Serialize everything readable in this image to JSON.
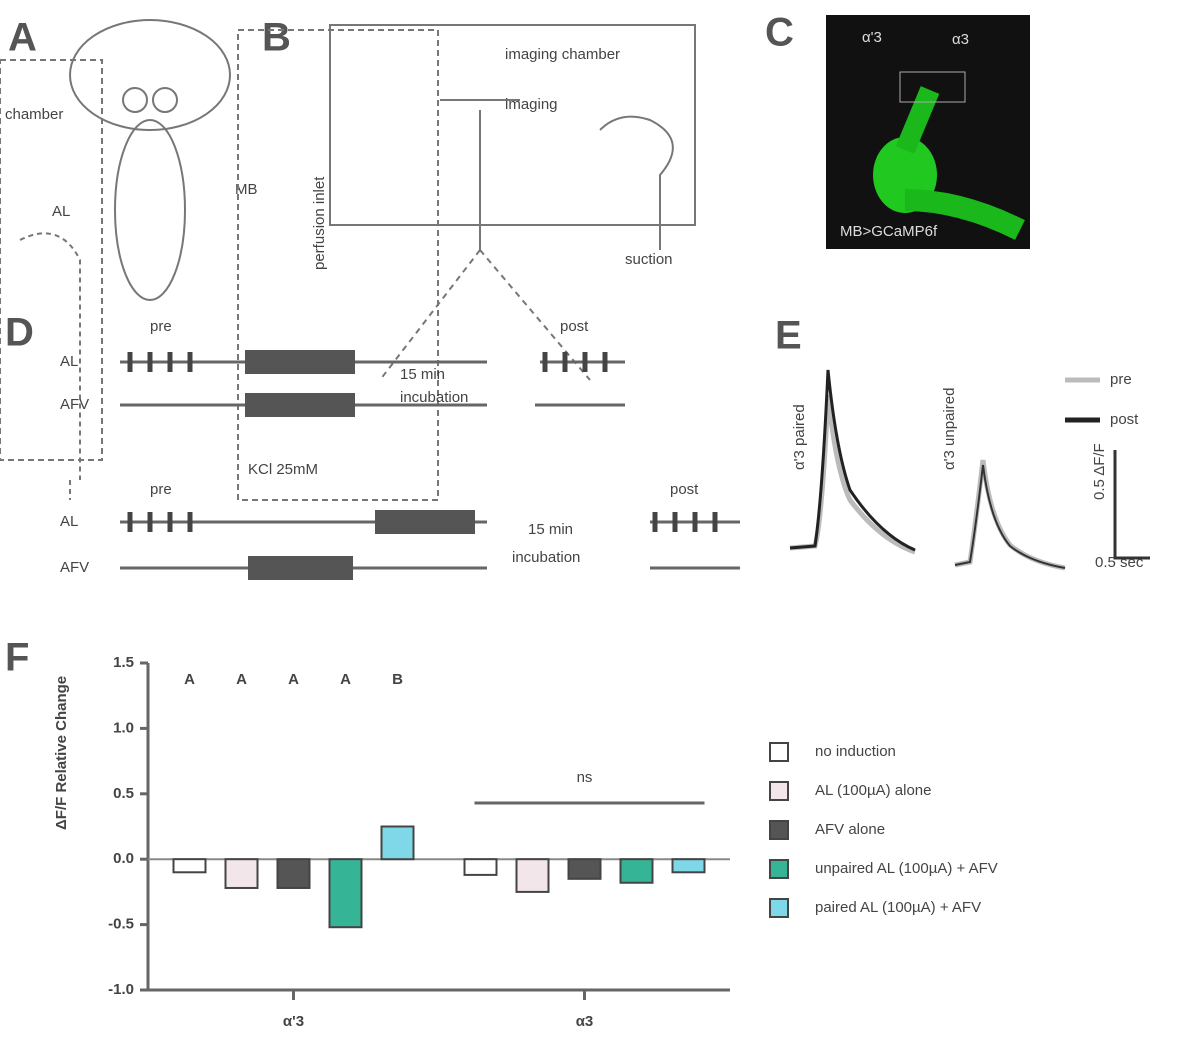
{
  "panel_labels": [
    "A",
    "B",
    "C",
    "D",
    "E",
    "F"
  ],
  "diagram_a": {
    "labels": [
      "chamber",
      "AL",
      "MB"
    ]
  },
  "diagram_b": {
    "labels": [
      "imaging chamber",
      "imaging",
      "suction",
      "perfusion inlet",
      "KCl 25mM"
    ]
  },
  "image_c": {
    "labels": [
      "α'3",
      "α3",
      "MB>GCaMP6f"
    ]
  },
  "protocol_d": {
    "phases": [
      "pre",
      "post"
    ],
    "rows": [
      "AL",
      "AFV"
    ],
    "interval": [
      "15 min",
      "incubation"
    ]
  },
  "traces_e": {
    "legend": [
      "pre",
      "post"
    ],
    "y_labels": [
      "α'3 paired",
      "α'3 unpaired"
    ],
    "scale_y": "0.5 ΔF/F",
    "scale_x": "0.5 sec"
  },
  "chart_data": {
    "type": "bar",
    "y_label": "ΔF/F Relative Change",
    "categories": [
      "α'3",
      "α3"
    ],
    "ylim": [
      -1.0,
      1.5
    ],
    "yticks": [
      {
        "value": -1,
        "label": "-1.0"
      },
      -0.5,
      {
        "value": 0,
        "label": "0.0"
      },
      0.5,
      {
        "value": 1,
        "label": "1.0"
      },
      1.5
    ],
    "series": [
      {
        "name": "no induction",
        "color": "#ffffff",
        "values": [
          -0.1,
          -0.12
        ]
      },
      {
        "name": "AL (100µA) alone",
        "color": "#f3e6ea",
        "values": [
          -0.22,
          -0.25
        ]
      },
      {
        "name": "AFV alone",
        "color": "#555555",
        "values": [
          -0.22,
          -0.15
        ]
      },
      {
        "name": "unpaired AL (100µA) + AFV",
        "color": "#35b596",
        "values": [
          -0.52,
          -0.18
        ]
      },
      {
        "name": "paired AL (100µA) + AFV",
        "color": "#7fd8e8",
        "values": [
          0.25,
          -0.1
        ]
      }
    ],
    "group_letters": [
      "A",
      "A",
      "A",
      "A",
      "B"
    ],
    "ns_label": "ns"
  }
}
